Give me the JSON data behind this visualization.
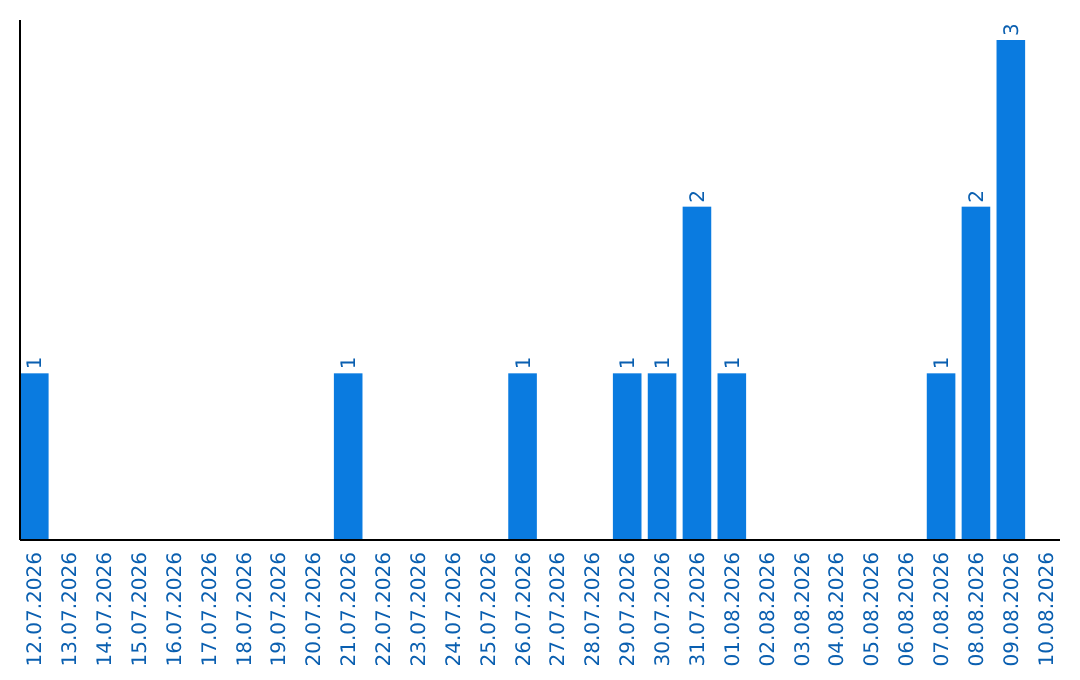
{
  "chart_data": {
    "type": "bar",
    "categories": [
      "12.07.2026",
      "13.07.2026",
      "14.07.2026",
      "15.07.2026",
      "16.07.2026",
      "17.07.2026",
      "18.07.2026",
      "19.07.2026",
      "20.07.2026",
      "21.07.2026",
      "22.07.2026",
      "23.07.2026",
      "24.07.2026",
      "25.07.2026",
      "26.07.2026",
      "27.07.2026",
      "28.07.2026",
      "29.07.2026",
      "30.07.2026",
      "31.07.2026",
      "01.08.2026",
      "02.08.2026",
      "03.08.2026",
      "04.08.2026",
      "05.08.2026",
      "06.08.2026",
      "07.08.2026",
      "08.08.2026",
      "09.08.2026",
      "10.08.2026"
    ],
    "values": [
      1,
      null,
      null,
      null,
      null,
      null,
      null,
      null,
      null,
      1,
      null,
      null,
      null,
      null,
      1,
      null,
      null,
      1,
      1,
      2,
      1,
      null,
      null,
      null,
      null,
      null,
      1,
      2,
      3,
      null
    ],
    "color": "#0a7be0",
    "ylim": [
      0,
      3
    ],
    "tick_labels": "x",
    "data_labels": true
  }
}
